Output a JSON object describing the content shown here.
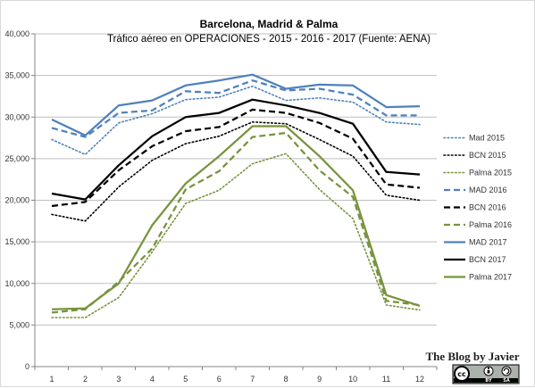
{
  "chart_data": {
    "type": "line",
    "title": "Barcelona, Madrid & Palma",
    "subtitle": "Tráfico aéreo en OPERACIONES - 2015 - 2016 - 2017 (Fuente: AENA)",
    "xlabel": "",
    "ylabel": "",
    "categories": [
      "1",
      "2",
      "3",
      "4",
      "5",
      "6",
      "7",
      "8",
      "9",
      "10",
      "11",
      "12"
    ],
    "x": [
      1,
      2,
      3,
      4,
      5,
      6,
      7,
      8,
      9,
      10,
      11,
      12
    ],
    "ylim": [
      0,
      40000
    ],
    "y_ticks": [
      0,
      5000,
      10000,
      15000,
      20000,
      25000,
      30000,
      35000,
      40000
    ],
    "y_tick_labels": [
      "0",
      "5,000",
      "10,000",
      "15,000",
      "20,000",
      "25,000",
      "30,000",
      "35,000",
      "40,000"
    ],
    "grid": true,
    "legend_position": "right",
    "series": [
      {
        "name": "Mad 2015",
        "color": "#4f81bd",
        "dash": "dotted",
        "values": [
          27300,
          25500,
          29300,
          30400,
          32100,
          32400,
          33700,
          32000,
          32300,
          31800,
          29400,
          29100
        ]
      },
      {
        "name": "BCN 2015",
        "color": "#000000",
        "dash": "dotted",
        "values": [
          18300,
          17500,
          21600,
          24800,
          26800,
          27700,
          29400,
          29200,
          27300,
          25300,
          20600,
          20000
        ]
      },
      {
        "name": "Palma 2015",
        "color": "#77933c",
        "dash": "dotted",
        "values": [
          5900,
          5900,
          8300,
          13800,
          19600,
          21200,
          24400,
          25600,
          21300,
          17800,
          7400,
          6800
        ]
      },
      {
        "name": "MAD 2016",
        "color": "#4f81bd",
        "dash": "dashed",
        "values": [
          28700,
          27600,
          30500,
          30800,
          33100,
          32900,
          34400,
          33200,
          33400,
          32700,
          30200,
          30200
        ]
      },
      {
        "name": "BCN 2016",
        "color": "#000000",
        "dash": "dashed",
        "values": [
          19300,
          19800,
          23600,
          26500,
          28300,
          28800,
          30900,
          30500,
          29300,
          27400,
          21900,
          21500
        ]
      },
      {
        "name": "Palma 2016",
        "color": "#77933c",
        "dash": "dashed",
        "values": [
          6500,
          6900,
          10200,
          14200,
          21300,
          23500,
          27600,
          28100,
          23600,
          20400,
          7900,
          7400
        ]
      },
      {
        "name": "MAD 2017",
        "color": "#4f81bd",
        "dash": "solid",
        "values": [
          29700,
          27800,
          31400,
          32000,
          33800,
          34400,
          35100,
          33400,
          33900,
          33800,
          31200,
          31300
        ]
      },
      {
        "name": "BCN 2017",
        "color": "#000000",
        "dash": "solid",
        "values": [
          20800,
          20100,
          24200,
          27700,
          30000,
          30500,
          32100,
          31400,
          30500,
          29200,
          23400,
          23100
        ]
      },
      {
        "name": "Palma 2017",
        "color": "#77933c",
        "dash": "solid",
        "values": [
          6900,
          7000,
          10000,
          17000,
          22000,
          25300,
          28900,
          28900,
          25300,
          21200,
          8600,
          7300
        ]
      }
    ]
  },
  "watermark": {
    "blog_name": "The Blog by Javier",
    "license_badge": [
      "cc",
      "BY",
      "SA"
    ]
  }
}
